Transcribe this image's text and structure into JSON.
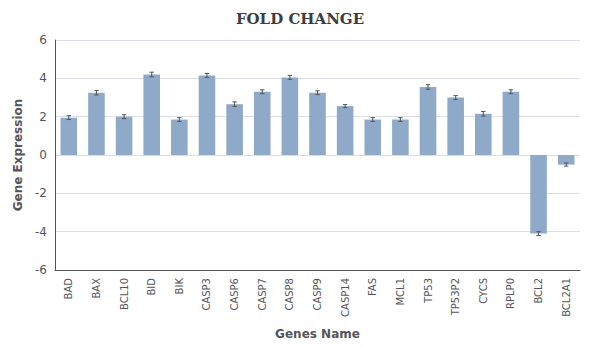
{
  "chart_data": {
    "type": "bar",
    "title": "FOLD CHANGE",
    "xlabel": "Genes Name",
    "ylabel": "Gene Expression",
    "categories": [
      "BAD",
      "BAX",
      "BCL10",
      "BID",
      "BIK",
      "CASP3",
      "CASP6",
      "CASP7",
      "CASP8",
      "CASP9",
      "CASP14",
      "FAS",
      "MCL1",
      "TP53",
      "TP53P2",
      "CYCS",
      "RPLP0",
      "BCL2",
      "BCL2A1"
    ],
    "values": [
      1.95,
      3.25,
      2.0,
      4.2,
      1.85,
      4.15,
      2.65,
      3.3,
      4.05,
      3.25,
      2.55,
      1.85,
      1.85,
      3.55,
      3.0,
      2.15,
      3.3,
      -4.1,
      -0.5
    ],
    "errors": [
      0.1,
      0.12,
      0.1,
      0.12,
      0.1,
      0.1,
      0.12,
      0.1,
      0.1,
      0.1,
      0.08,
      0.1,
      0.1,
      0.12,
      0.1,
      0.12,
      0.1,
      0.1,
      0.08
    ],
    "color": "#8eaac8",
    "ylim": [
      -6,
      6
    ],
    "yticks": [
      -6,
      -4,
      -2,
      0,
      2,
      4,
      6
    ],
    "grid": true
  }
}
